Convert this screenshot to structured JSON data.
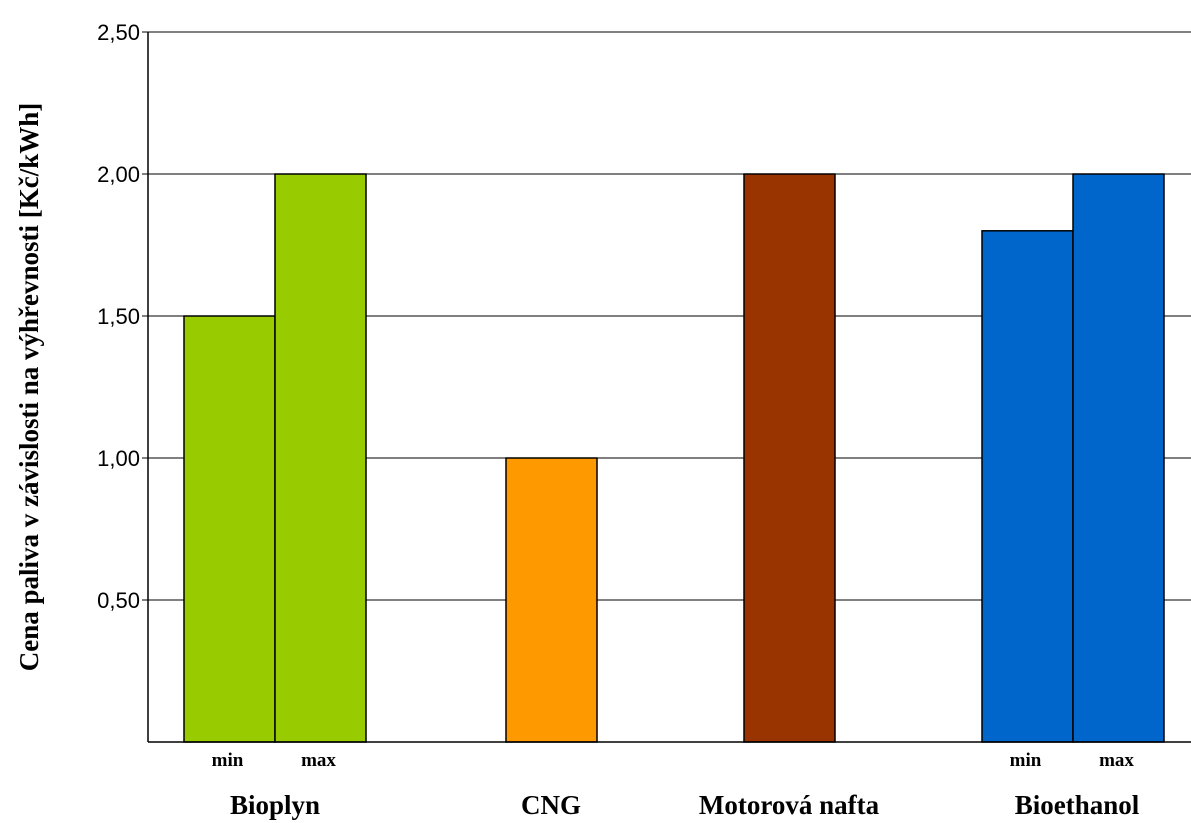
{
  "chart_data": {
    "type": "bar",
    "title": "",
    "ylabel": "Cena paliva v závislosti na výhřevnosti [Kč/kWh]",
    "xlabel": "",
    "ylim": [
      0,
      2.5
    ],
    "yticks": [
      {
        "value": 0.5,
        "label": "0,50"
      },
      {
        "value": 1.0,
        "label": "1,00"
      },
      {
        "value": 1.5,
        "label": "1,50"
      },
      {
        "value": 2.0,
        "label": "2,00"
      },
      {
        "value": 2.5,
        "label": "2,50"
      }
    ],
    "grid": true,
    "legend": "none",
    "categories": [
      {
        "name": "Bioplyn",
        "bars": [
          {
            "label": "min",
            "value": 1.5,
            "color": "#99cc00"
          },
          {
            "label": "max",
            "value": 2.0,
            "color": "#99cc00"
          }
        ]
      },
      {
        "name": "CNG",
        "bars": [
          {
            "label": "",
            "value": 1.0,
            "color": "#ff9900"
          }
        ]
      },
      {
        "name": "Motorová nafta",
        "bars": [
          {
            "label": "",
            "value": 2.0,
            "color": "#993300"
          }
        ]
      },
      {
        "name": "Bioethanol",
        "bars": [
          {
            "label": "min",
            "value": 1.8,
            "color": "#0066cc"
          },
          {
            "label": "max",
            "value": 2.0,
            "color": "#0066cc"
          }
        ]
      }
    ]
  }
}
